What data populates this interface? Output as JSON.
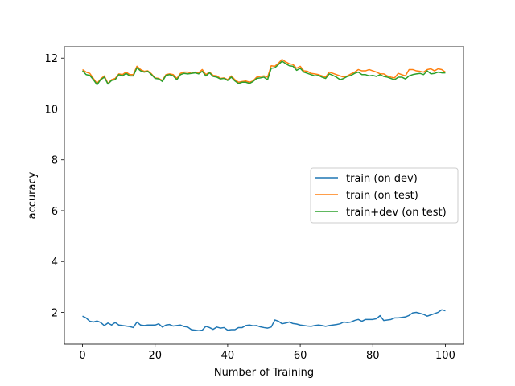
{
  "chart_data": {
    "type": "line",
    "title": "",
    "xlabel": "Number of Training",
    "ylabel": "accuracy",
    "xlim": [
      -5,
      105
    ],
    "ylim": [
      0.75,
      12.45
    ],
    "xticks": [
      0,
      20,
      40,
      60,
      80,
      100
    ],
    "yticks": [
      2,
      4,
      6,
      8,
      10,
      12
    ],
    "grid": false,
    "legend_position": "center-right",
    "x": [
      0,
      1,
      2,
      3,
      4,
      5,
      6,
      7,
      8,
      9,
      10,
      11,
      12,
      13,
      14,
      15,
      16,
      17,
      18,
      19,
      20,
      21,
      22,
      23,
      24,
      25,
      26,
      27,
      28,
      29,
      30,
      31,
      32,
      33,
      34,
      35,
      36,
      37,
      38,
      39,
      40,
      41,
      42,
      43,
      44,
      45,
      46,
      47,
      48,
      49,
      50,
      51,
      52,
      53,
      54,
      55,
      56,
      57,
      58,
      59,
      60,
      61,
      62,
      63,
      64,
      65,
      66,
      67,
      68,
      69,
      70,
      71,
      72,
      73,
      74,
      75,
      76,
      77,
      78,
      79,
      80,
      81,
      82,
      83,
      84,
      85,
      86,
      87,
      88,
      89,
      90,
      91,
      92,
      93,
      94,
      95,
      96,
      97,
      98,
      99,
      100
    ],
    "series": [
      {
        "name": "train (on dev)",
        "color": "#1f77b4",
        "values": [
          1.85,
          1.78,
          1.65,
          1.62,
          1.66,
          1.6,
          1.48,
          1.58,
          1.5,
          1.6,
          1.5,
          1.48,
          1.46,
          1.44,
          1.4,
          1.62,
          1.5,
          1.48,
          1.5,
          1.5,
          1.5,
          1.55,
          1.42,
          1.5,
          1.52,
          1.46,
          1.48,
          1.5,
          1.44,
          1.42,
          1.32,
          1.3,
          1.28,
          1.3,
          1.45,
          1.4,
          1.33,
          1.42,
          1.38,
          1.4,
          1.3,
          1.32,
          1.32,
          1.4,
          1.4,
          1.48,
          1.5,
          1.47,
          1.48,
          1.43,
          1.4,
          1.38,
          1.42,
          1.7,
          1.65,
          1.55,
          1.58,
          1.62,
          1.56,
          1.54,
          1.5,
          1.48,
          1.46,
          1.45,
          1.48,
          1.5,
          1.48,
          1.45,
          1.48,
          1.5,
          1.52,
          1.55,
          1.62,
          1.6,
          1.62,
          1.68,
          1.72,
          1.65,
          1.72,
          1.72,
          1.72,
          1.75,
          1.87,
          1.68,
          1.7,
          1.72,
          1.78,
          1.78,
          1.8,
          1.82,
          1.88,
          1.98,
          2.0,
          1.96,
          1.92,
          1.85,
          1.9,
          1.95,
          2.0,
          2.1,
          2.06
        ]
      },
      {
        "name": "train (on test)",
        "color": "#ff7f0e",
        "values": [
          11.55,
          11.45,
          11.4,
          11.2,
          11.0,
          11.18,
          11.3,
          11.0,
          11.15,
          11.2,
          11.38,
          11.35,
          11.45,
          11.35,
          11.35,
          11.68,
          11.55,
          11.48,
          11.5,
          11.38,
          11.22,
          11.2,
          11.12,
          11.35,
          11.38,
          11.35,
          11.2,
          11.4,
          11.45,
          11.45,
          11.4,
          11.45,
          11.42,
          11.55,
          11.35,
          11.45,
          11.32,
          11.3,
          11.2,
          11.22,
          11.15,
          11.3,
          11.15,
          11.05,
          11.08,
          11.1,
          11.05,
          11.1,
          11.25,
          11.28,
          11.3,
          11.25,
          11.7,
          11.68,
          11.8,
          11.95,
          11.85,
          11.78,
          11.75,
          11.6,
          11.68,
          11.5,
          11.48,
          11.4,
          11.38,
          11.35,
          11.3,
          11.25,
          11.45,
          11.4,
          11.35,
          11.3,
          11.25,
          11.3,
          11.38,
          11.45,
          11.55,
          11.5,
          11.5,
          11.55,
          11.5,
          11.45,
          11.38,
          11.38,
          11.3,
          11.25,
          11.22,
          11.4,
          11.35,
          11.3,
          11.55,
          11.55,
          11.5,
          11.48,
          11.45,
          11.55,
          11.58,
          11.5,
          11.58,
          11.55,
          11.45
        ]
      },
      {
        "name": "train+dev (on test)",
        "color": "#2ca02c",
        "values": [
          11.5,
          11.35,
          11.32,
          11.15,
          10.95,
          11.15,
          11.25,
          10.98,
          11.12,
          11.15,
          11.35,
          11.3,
          11.4,
          11.3,
          11.3,
          11.62,
          11.5,
          11.45,
          11.48,
          11.35,
          11.2,
          11.18,
          11.08,
          11.32,
          11.35,
          11.3,
          11.15,
          11.35,
          11.4,
          11.38,
          11.4,
          11.42,
          11.38,
          11.48,
          11.3,
          11.42,
          11.28,
          11.25,
          11.18,
          11.2,
          11.12,
          11.25,
          11.1,
          11.0,
          11.05,
          11.05,
          11.0,
          11.08,
          11.2,
          11.22,
          11.25,
          11.15,
          11.6,
          11.62,
          11.75,
          11.88,
          11.78,
          11.7,
          11.68,
          11.52,
          11.6,
          11.45,
          11.4,
          11.35,
          11.3,
          11.32,
          11.25,
          11.2,
          11.38,
          11.32,
          11.25,
          11.15,
          11.2,
          11.28,
          11.32,
          11.4,
          11.45,
          11.35,
          11.35,
          11.3,
          11.32,
          11.28,
          11.35,
          11.28,
          11.25,
          11.2,
          11.15,
          11.25,
          11.25,
          11.18,
          11.3,
          11.35,
          11.38,
          11.4,
          11.35,
          11.5,
          11.38,
          11.4,
          11.45,
          11.42,
          11.42
        ]
      }
    ]
  }
}
